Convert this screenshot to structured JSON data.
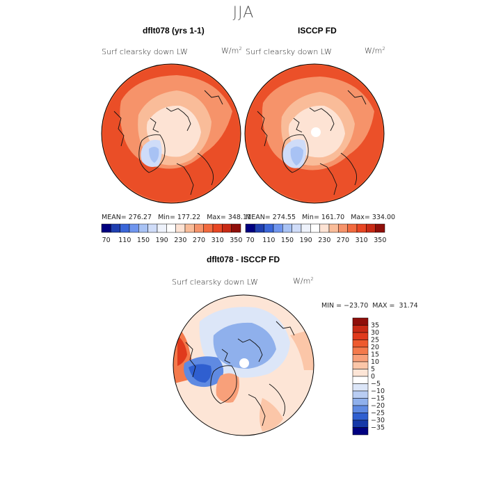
{
  "figure": {
    "season_title": "JJA"
  },
  "panels": [
    {
      "title": "dflt078 (yrs 1-1)",
      "variable": "Surf clearsky down LW",
      "units_base": "W/m",
      "units_exp": "2",
      "stats_text": "MEAN= 276.27   Min= 177.22   Max= 348.11"
    },
    {
      "title": "ISCCP FD",
      "variable": "Surf clearsky down LW",
      "units_base": "W/m",
      "units_exp": "2",
      "stats_text": "MEAN= 274.55   Min= 161.70   Max= 334.00"
    },
    {
      "title": "dflt078 - ISCCP FD",
      "variable": "Surf clearsky down LW",
      "units_base": "W/m",
      "units_exp": "2",
      "stats_text": "MIN = −23.70  MAX =  31.74"
    }
  ],
  "chart_data": [
    {
      "type": "heatmap",
      "title": "dflt078 (yrs 1-1)",
      "subtitle": "Surf clearsky down LW",
      "units": "W/m2",
      "projection": "north-polar-stereographic",
      "mean": 276.27,
      "min": 177.22,
      "max": 348.11,
      "colorbar": {
        "orientation": "horizontal",
        "levels": [
          70,
          90,
          110,
          130,
          150,
          170,
          190,
          210,
          230,
          250,
          270,
          290,
          310,
          330,
          350
        ],
        "tick_labels": [
          "70",
          "110",
          "150",
          "190",
          "230",
          "270",
          "310",
          "350"
        ],
        "colors": [
          "#000080",
          "#1f3fb0",
          "#3a66d8",
          "#6f95ee",
          "#a8c2f4",
          "#cfdcf8",
          "#eef2fb",
          "#ffffff",
          "#fde3d4",
          "#f9bc99",
          "#f6936a",
          "#f26a3e",
          "#e84623",
          "#c82a15",
          "#8f0f0a"
        ]
      }
    },
    {
      "type": "heatmap",
      "title": "ISCCP FD",
      "subtitle": "Surf clearsky down LW",
      "units": "W/m2",
      "projection": "north-polar-stereographic",
      "mean": 274.55,
      "min": 161.7,
      "max": 334.0,
      "colorbar": {
        "orientation": "horizontal",
        "levels": [
          70,
          90,
          110,
          130,
          150,
          170,
          190,
          210,
          230,
          250,
          270,
          290,
          310,
          330,
          350
        ],
        "tick_labels": [
          "70",
          "110",
          "150",
          "190",
          "230",
          "270",
          "310",
          "350"
        ],
        "colors": [
          "#000080",
          "#1f3fb0",
          "#3a66d8",
          "#6f95ee",
          "#a8c2f4",
          "#cfdcf8",
          "#eef2fb",
          "#ffffff",
          "#fde3d4",
          "#f9bc99",
          "#f6936a",
          "#f26a3e",
          "#e84623",
          "#c82a15",
          "#8f0f0a"
        ]
      }
    },
    {
      "type": "heatmap",
      "title": "dflt078 - ISCCP FD",
      "subtitle": "Surf clearsky down LW",
      "units": "W/m2",
      "projection": "north-polar-stereographic",
      "min": -23.7,
      "max": 31.74,
      "colorbar": {
        "orientation": "vertical",
        "levels": [
          35,
          30,
          25,
          20,
          15,
          10,
          5,
          0,
          -5,
          -10,
          -15,
          -20,
          -25,
          -30,
          -35
        ],
        "tick_labels": [
          "35",
          "30",
          "25",
          "20",
          "15",
          "10",
          "5",
          "0",
          "−5",
          "−10",
          "−15",
          "−20",
          "−25",
          "−30",
          "−35"
        ],
        "colors": [
          "#8f0f0a",
          "#c82a15",
          "#e03a1c",
          "#ee5a2e",
          "#f47a4c",
          "#f8a07a",
          "#fbc6a8",
          "#fde5d6",
          "#ffffff",
          "#dce6f8",
          "#b9cdf3",
          "#8fb0ec",
          "#5f8ae2",
          "#2f5fd0",
          "#1538a8",
          "#000080"
        ]
      }
    }
  ]
}
